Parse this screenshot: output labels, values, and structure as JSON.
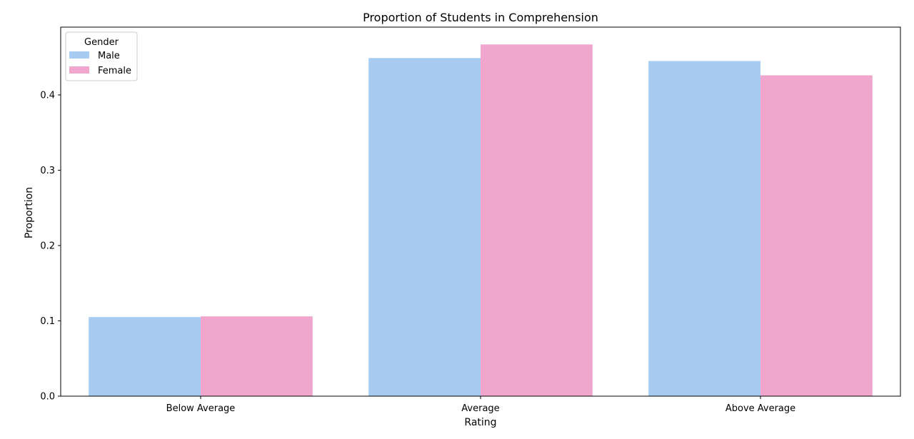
{
  "chart_data": {
    "type": "bar",
    "title": "Proportion of Students in Comprehension",
    "xlabel": "Rating",
    "ylabel": "Proportion",
    "categories": [
      "Below Average",
      "Average",
      "Above Average"
    ],
    "series": [
      {
        "name": "Male",
        "values": [
          0.105,
          0.449,
          0.445
        ],
        "color": "#a7cbf1"
      },
      {
        "name": "Female",
        "values": [
          0.106,
          0.467,
          0.426
        ],
        "color": "#f1a7cd"
      }
    ],
    "ylim": [
      0,
      0.49
    ],
    "yticks": [
      "0.0",
      "0.1",
      "0.2",
      "0.3",
      "0.4"
    ],
    "legend": {
      "title": "Gender",
      "placement": "upper-left"
    },
    "grid": false
  }
}
